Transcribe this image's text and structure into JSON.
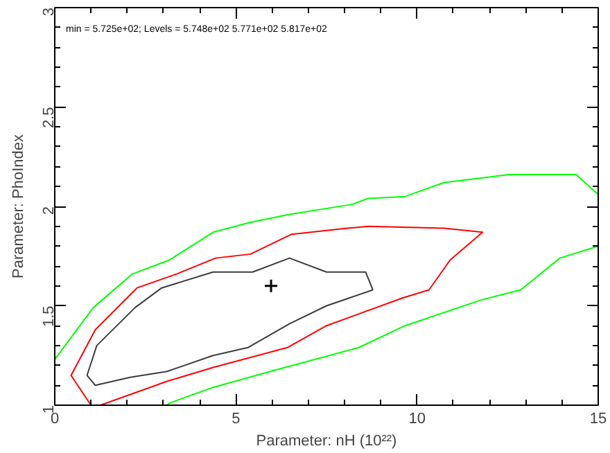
{
  "chart_data": {
    "type": "line",
    "xlabel": "Parameter: nH (10²²)",
    "ylabel": "Parameter: PhoIndex",
    "annotations": [
      "min = 5.725e+02; Levels =  5.748e+02 5.771e+02 5.817e+02"
    ],
    "xlim": [
      0,
      15
    ],
    "ylim": [
      1,
      3
    ],
    "xticks": [
      0,
      {
        "value": 1,
        "label": null
      },
      {
        "value": 2,
        "label": null
      },
      {
        "value": 3,
        "label": null
      },
      {
        "value": 4,
        "label": null
      },
      5,
      {
        "value": 6,
        "label": null
      },
      {
        "value": 7,
        "label": null
      },
      {
        "value": 8,
        "label": null
      },
      {
        "value": 9,
        "label": null
      },
      10,
      {
        "value": 11,
        "label": null
      },
      {
        "value": 12,
        "label": null
      },
      {
        "value": 13,
        "label": null
      },
      {
        "value": 14,
        "label": null
      },
      15
    ],
    "yticks": [
      1,
      {
        "value": 1.1,
        "label": null
      },
      {
        "value": 1.2,
        "label": null
      },
      {
        "value": 1.3,
        "label": null
      },
      {
        "value": 1.4,
        "label": null
      },
      1.5,
      {
        "value": 1.6,
        "label": null
      },
      {
        "value": 1.7,
        "label": null
      },
      {
        "value": 1.8,
        "label": null
      },
      {
        "value": 1.9,
        "label": null
      },
      2,
      {
        "value": 2.1,
        "label": null
      },
      {
        "value": 2.2,
        "label": null
      },
      {
        "value": 2.3,
        "label": null
      },
      {
        "value": 2.4,
        "label": null
      },
      2.5,
      {
        "value": 2.6,
        "label": null
      },
      {
        "value": 2.7,
        "label": null
      },
      {
        "value": 2.8,
        "label": null
      },
      {
        "value": 2.9,
        "label": null
      },
      3
    ],
    "series": [
      {
        "color": "#3c3c3c",
        "x": [
          0.89,
          1.16,
          2.21,
          2.95,
          4.37,
          5.46,
          6.48,
          7.5,
          8.58,
          8.78
        ],
        "values": [
          1.15,
          1.3,
          1.49,
          1.59,
          1.67,
          1.67,
          1.74,
          1.67,
          1.67,
          1.58
        ]
      },
      {
        "color": "#3c3c3c",
        "x": [
          8.78,
          7.5,
          6.48,
          5.33,
          4.37,
          3.1,
          2.08,
          1.12,
          0.89
        ],
        "values": [
          1.58,
          1.5,
          1.41,
          1.29,
          1.25,
          1.17,
          1.14,
          1.1,
          1.15
        ]
      },
      {
        "color": "#ff0000",
        "x": [
          1.0,
          0.45,
          1.12,
          2.27,
          3.36,
          4.44,
          5.4,
          6.54,
          8.07,
          8.65,
          10.75,
          11.81,
          10.91,
          10.33,
          9.61,
          7.5,
          6.42,
          4.37,
          3.1,
          1.26
        ],
        "values": [
          1.0,
          1.15,
          1.38,
          1.59,
          1.66,
          1.74,
          1.76,
          1.86,
          1.89,
          1.9,
          1.89,
          1.87,
          1.73,
          1.58,
          1.54,
          1.4,
          1.29,
          1.19,
          1.12,
          1.0
        ]
      },
      {
        "color": "#00ff00",
        "x": [
          0,
          1.06,
          2.14,
          3.16,
          4.37,
          5.4,
          6.48,
          8.2,
          8.65,
          9.67,
          10.75,
          12.54,
          14.39,
          15
        ],
        "values": [
          1.23,
          1.49,
          1.66,
          1.73,
          1.87,
          1.92,
          1.96,
          2.01,
          2.04,
          2.05,
          2.12,
          2.16,
          2.16,
          2.06
        ]
      },
      {
        "color": "#00ff00",
        "x": [
          15,
          13.94,
          12.86,
          11.78,
          9.67,
          8.39,
          6.16,
          4.37,
          3.16,
          3.1
        ],
        "values": [
          1.8,
          1.74,
          1.58,
          1.53,
          1.4,
          1.29,
          1.18,
          1.09,
          1.01,
          1.0
        ]
      },
      {
        "type": "scatter",
        "marker": "cross",
        "color": "#000000",
        "x": [
          5.97
        ],
        "values": [
          1.6
        ]
      }
    ]
  }
}
